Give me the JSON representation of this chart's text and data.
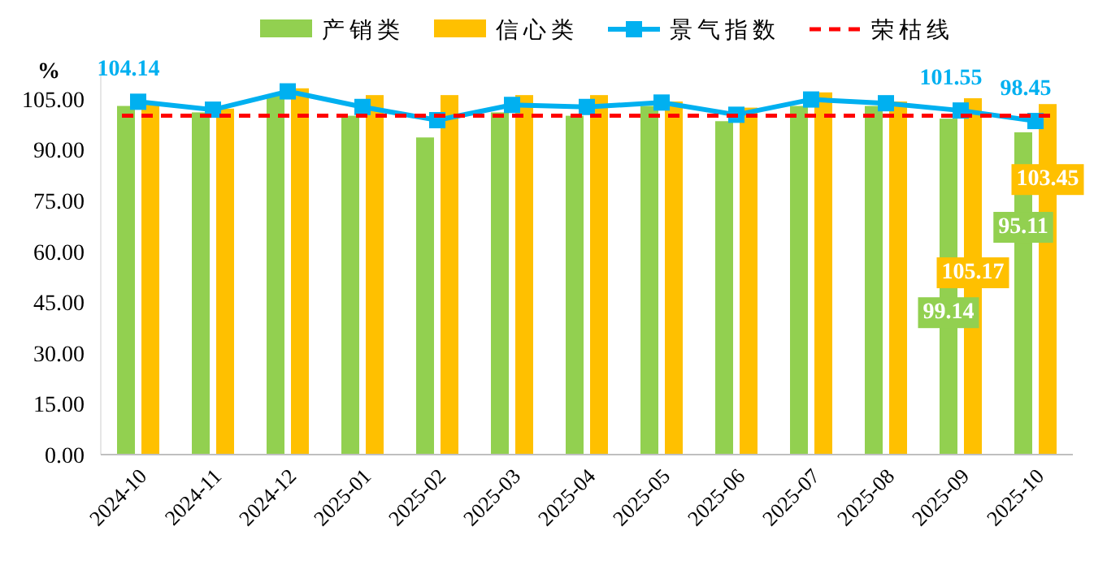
{
  "chart_data": {
    "type": "bar",
    "ylabel": "%",
    "categories": [
      "2024-10",
      "2024-11",
      "2024-12",
      "2025-01",
      "2025-02",
      "2025-03",
      "2025-04",
      "2025-05",
      "2025-06",
      "2025-07",
      "2025-08",
      "2025-09",
      "2025-10"
    ],
    "series": [
      {
        "name": "产销类",
        "color": "#92d050",
        "values": [
          102.9,
          101.0,
          106.1,
          100.0,
          93.6,
          101.0,
          100.0,
          102.9,
          98.4,
          102.9,
          102.9,
          99.14,
          95.11
        ],
        "value_labels": [
          null,
          null,
          null,
          null,
          null,
          null,
          null,
          null,
          null,
          null,
          null,
          "99.14",
          "95.11"
        ]
      },
      {
        "name": "信心类",
        "color": "#ffc000",
        "values": [
          104.2,
          102.1,
          108.1,
          106.1,
          106.1,
          106.1,
          106.1,
          104.2,
          102.4,
          106.9,
          104.2,
          105.17,
          103.45
        ],
        "value_labels": [
          null,
          null,
          null,
          null,
          null,
          null,
          null,
          null,
          null,
          null,
          null,
          "105.17",
          "103.45"
        ]
      },
      {
        "name": "景气指数",
        "type": "line",
        "color": "#00b0f0",
        "marker": "square",
        "values": [
          104.14,
          101.8,
          107.2,
          102.6,
          98.7,
          103.2,
          102.6,
          103.9,
          100.3,
          104.8,
          103.7,
          101.55,
          98.45
        ],
        "value_labels": [
          "104.14",
          null,
          null,
          null,
          null,
          null,
          null,
          null,
          null,
          null,
          null,
          "101.55",
          "98.45"
        ]
      }
    ],
    "ref_lines": [
      {
        "axis": "y",
        "value": 100,
        "label": "荣枯线",
        "color": "#ff0000",
        "line_style": "dashed"
      }
    ],
    "ylim": [
      0,
      115
    ],
    "yticks": [
      {
        "value": 0,
        "label": "0.00"
      },
      {
        "value": 15,
        "label": "15.00"
      },
      {
        "value": 30,
        "label": "30.00"
      },
      {
        "value": 45,
        "label": "45.00"
      },
      {
        "value": 60,
        "label": "60.00"
      },
      {
        "value": 75,
        "label": "75.00"
      },
      {
        "value": 90,
        "label": "90.00"
      },
      {
        "value": 105,
        "label": "105.00"
      }
    ],
    "legend": "top",
    "grid": false
  }
}
